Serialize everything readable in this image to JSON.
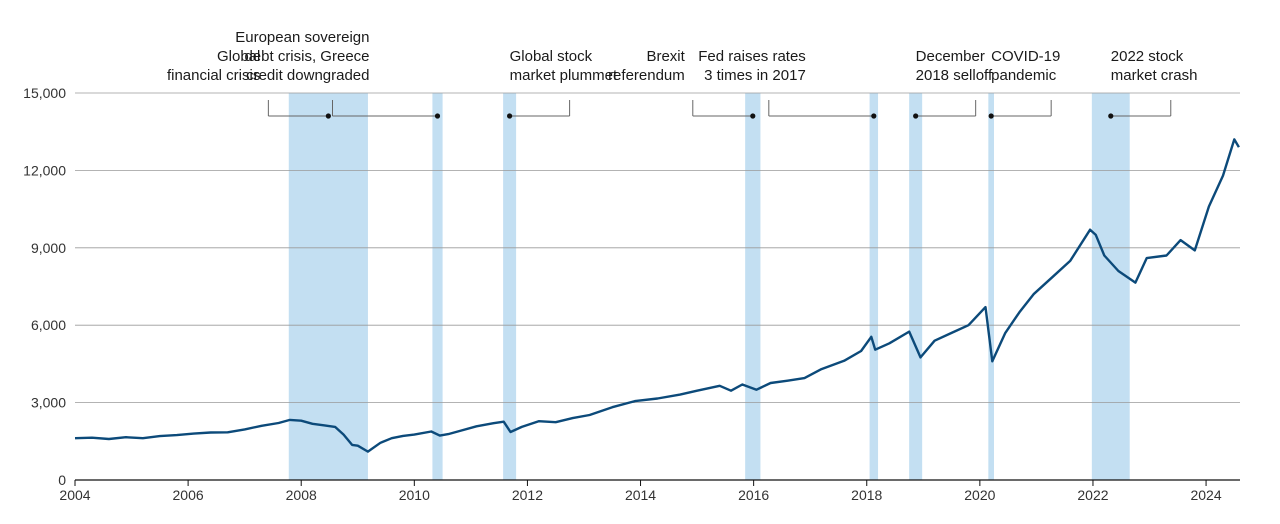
{
  "chart_data": {
    "type": "line",
    "title": "",
    "xlabel": "",
    "ylabel": "",
    "xlim": [
      2004.0,
      2024.6
    ],
    "ylim": [
      0,
      15000
    ],
    "grid": true,
    "colors": {
      "line": "#0c4a7a",
      "band": "#c3dff2",
      "grid": "#9a9a9a",
      "axis": "#111111",
      "text": "#1a1a1a"
    },
    "x_ticks": [
      {
        "value": 2004,
        "label": "2004"
      },
      {
        "value": 2006,
        "label": "2006"
      },
      {
        "value": 2008,
        "label": "2008"
      },
      {
        "value": 2010,
        "label": "2010"
      },
      {
        "value": 2012,
        "label": "2012"
      },
      {
        "value": 2014,
        "label": "2014"
      },
      {
        "value": 2016,
        "label": "2016"
      },
      {
        "value": 2018,
        "label": "2018"
      },
      {
        "value": 2020,
        "label": "2020"
      },
      {
        "value": 2022,
        "label": "2022"
      },
      {
        "value": 2024,
        "label": "2024"
      }
    ],
    "y_ticks": [
      {
        "value": 0,
        "label": "0"
      },
      {
        "value": 3000,
        "label": "3,000"
      },
      {
        "value": 6000,
        "label": "6,000"
      },
      {
        "value": 9000,
        "label": "9,000"
      },
      {
        "value": 12000,
        "label": "12,000"
      },
      {
        "value": 15000,
        "label": "15,000"
      }
    ],
    "series": [
      {
        "points": [
          [
            2004.0,
            1620
          ],
          [
            2004.3,
            1640
          ],
          [
            2004.6,
            1590
          ],
          [
            2004.9,
            1660
          ],
          [
            2005.2,
            1620
          ],
          [
            2005.5,
            1700
          ],
          [
            2005.8,
            1740
          ],
          [
            2006.1,
            1800
          ],
          [
            2006.4,
            1840
          ],
          [
            2006.7,
            1850
          ],
          [
            2007.0,
            1960
          ],
          [
            2007.3,
            2100
          ],
          [
            2007.6,
            2210
          ],
          [
            2007.8,
            2330
          ],
          [
            2008.0,
            2300
          ],
          [
            2008.2,
            2180
          ],
          [
            2008.4,
            2120
          ],
          [
            2008.6,
            2060
          ],
          [
            2008.75,
            1760
          ],
          [
            2008.9,
            1360
          ],
          [
            2009.0,
            1330
          ],
          [
            2009.18,
            1100
          ],
          [
            2009.4,
            1440
          ],
          [
            2009.6,
            1620
          ],
          [
            2009.8,
            1710
          ],
          [
            2010.0,
            1760
          ],
          [
            2010.3,
            1880
          ],
          [
            2010.45,
            1720
          ],
          [
            2010.6,
            1780
          ],
          [
            2010.8,
            1900
          ],
          [
            2011.1,
            2080
          ],
          [
            2011.4,
            2200
          ],
          [
            2011.58,
            2260
          ],
          [
            2011.7,
            1860
          ],
          [
            2011.9,
            2060
          ],
          [
            2012.2,
            2280
          ],
          [
            2012.5,
            2240
          ],
          [
            2012.8,
            2400
          ],
          [
            2013.1,
            2520
          ],
          [
            2013.5,
            2820
          ],
          [
            2013.9,
            3060
          ],
          [
            2014.3,
            3160
          ],
          [
            2014.7,
            3310
          ],
          [
            2015.0,
            3460
          ],
          [
            2015.4,
            3650
          ],
          [
            2015.6,
            3460
          ],
          [
            2015.8,
            3700
          ],
          [
            2016.05,
            3500
          ],
          [
            2016.3,
            3760
          ],
          [
            2016.6,
            3850
          ],
          [
            2016.9,
            3950
          ],
          [
            2017.2,
            4300
          ],
          [
            2017.6,
            4620
          ],
          [
            2017.9,
            5000
          ],
          [
            2018.08,
            5550
          ],
          [
            2018.15,
            5050
          ],
          [
            2018.4,
            5300
          ],
          [
            2018.75,
            5750
          ],
          [
            2018.95,
            4750
          ],
          [
            2019.2,
            5400
          ],
          [
            2019.5,
            5700
          ],
          [
            2019.8,
            6000
          ],
          [
            2020.1,
            6700
          ],
          [
            2020.22,
            4600
          ],
          [
            2020.45,
            5700
          ],
          [
            2020.7,
            6500
          ],
          [
            2020.95,
            7200
          ],
          [
            2021.3,
            7900
          ],
          [
            2021.6,
            8500
          ],
          [
            2021.95,
            9700
          ],
          [
            2022.05,
            9500
          ],
          [
            2022.2,
            8700
          ],
          [
            2022.45,
            8100
          ],
          [
            2022.75,
            7650
          ],
          [
            2022.95,
            8600
          ],
          [
            2023.3,
            8700
          ],
          [
            2023.55,
            9300
          ],
          [
            2023.8,
            8900
          ],
          [
            2024.05,
            10600
          ],
          [
            2024.3,
            11800
          ],
          [
            2024.5,
            13200
          ],
          [
            2024.58,
            12900
          ]
        ]
      }
    ],
    "events": [
      {
        "label": [
          "Global",
          "financial crisis"
        ],
        "start": 2007.78,
        "end": 2009.18
      },
      {
        "label": [
          "European sovereign",
          "debt crisis, Greece",
          "credit downgraded"
        ],
        "start": 2010.32,
        "end": 2010.5
      },
      {
        "label": [
          "Global stock",
          "market plummet"
        ],
        "start": 2011.57,
        "end": 2011.8
      },
      {
        "label": [
          "Brexit",
          "referendum"
        ],
        "start": 2015.85,
        "end": 2016.12
      },
      {
        "label": [
          "Fed raises rates",
          "3 times in 2017"
        ],
        "start": 2018.05,
        "end": 2018.2
      },
      {
        "label": [
          "December",
          "2018 selloff"
        ],
        "start": 2018.75,
        "end": 2018.98
      },
      {
        "label": [
          "COVID-19",
          "pandemic"
        ],
        "start": 2020.15,
        "end": 2020.25
      },
      {
        "label": [
          "2022 stock",
          "market crash"
        ],
        "start": 2021.98,
        "end": 2022.65
      }
    ]
  }
}
